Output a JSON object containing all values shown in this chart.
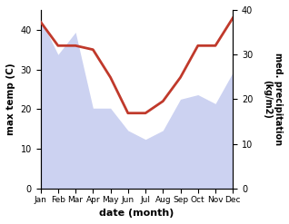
{
  "months": [
    "Jan",
    "Feb",
    "Mar",
    "Apr",
    "May",
    "Jun",
    "Jul",
    "Aug",
    "Sep",
    "Oct",
    "Nov",
    "Dec"
  ],
  "temperature": [
    42,
    36,
    36,
    35,
    28,
    19,
    19,
    22,
    28,
    36,
    36,
    43
  ],
  "precipitation": [
    38,
    30,
    35,
    18,
    18,
    13,
    11,
    13,
    20,
    21,
    19,
    26
  ],
  "temp_color": "#c0392b",
  "precip_color": "#aab4e8",
  "precip_alpha": 0.6,
  "ylabel_left": "max temp (C)",
  "ylabel_right": "med. precipitation\n(kg/m2)",
  "xlabel": "date (month)",
  "ylim_left": [
    0,
    45
  ],
  "ylim_right": [
    0,
    40
  ],
  "yticks_left": [
    0,
    10,
    20,
    30,
    40
  ],
  "yticks_right": [
    0,
    10,
    20,
    30,
    40
  ],
  "temp_linewidth": 2.0
}
